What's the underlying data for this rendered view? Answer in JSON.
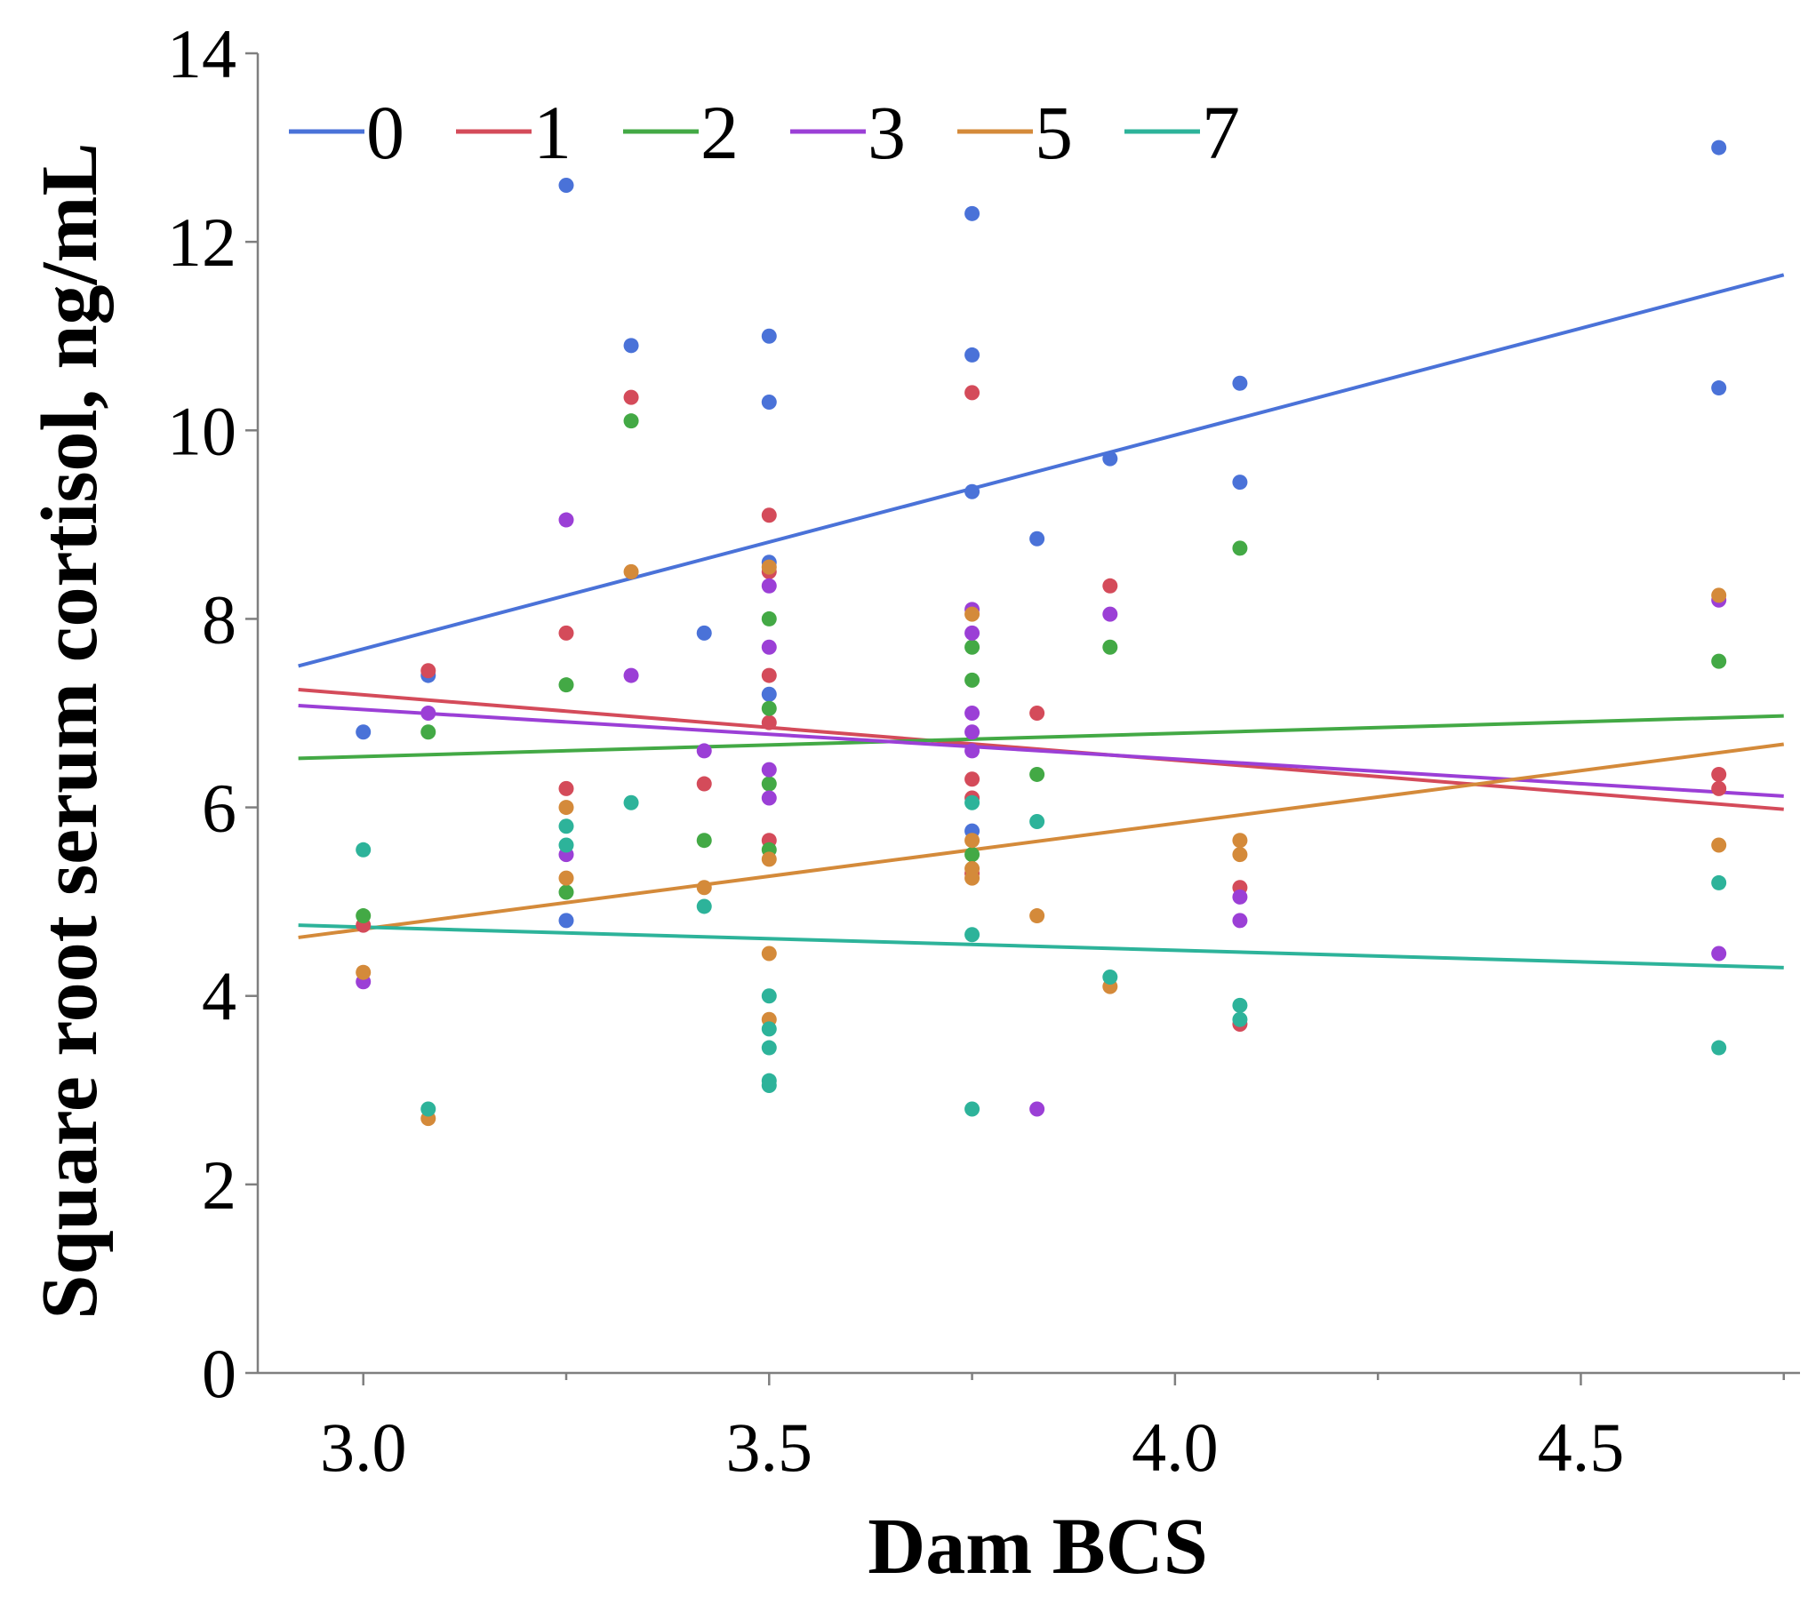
{
  "chart_data": {
    "type": "scatter",
    "title": "",
    "xlabel": "Dam BCS",
    "ylabel": "Square root serum cortisol, ng/mL",
    "xlim": [
      2.87,
      4.77
    ],
    "ylim": [
      0,
      14
    ],
    "xticks": [
      3.0,
      3.5,
      4.0,
      4.5
    ],
    "xtick_labels": [
      "3.0",
      "3.5",
      "4.0",
      "4.5"
    ],
    "xminor_ticks": [
      3.25,
      3.75,
      4.25,
      4.75
    ],
    "yticks": [
      0,
      2,
      4,
      6,
      8,
      10,
      12,
      14
    ],
    "ytick_labels": [
      "0",
      "2",
      "4",
      "6",
      "8",
      "10",
      "12",
      "14"
    ],
    "grid": false,
    "legend_position": "top",
    "series": [
      {
        "name": "0",
        "color": "#4a72d8",
        "fit": [
          [
            2.92,
            7.5
          ],
          [
            4.75,
            11.65
          ]
        ],
        "points": [
          [
            3.0,
            6.8
          ],
          [
            3.08,
            7.4
          ],
          [
            3.25,
            12.6
          ],
          [
            3.25,
            4.8
          ],
          [
            3.33,
            10.9
          ],
          [
            3.42,
            7.85
          ],
          [
            3.5,
            11.0
          ],
          [
            3.5,
            10.3
          ],
          [
            3.5,
            8.6
          ],
          [
            3.5,
            7.2
          ],
          [
            3.75,
            12.3
          ],
          [
            3.75,
            10.8
          ],
          [
            3.75,
            9.35
          ],
          [
            3.75,
            5.75
          ],
          [
            3.83,
            8.85
          ],
          [
            3.92,
            9.7
          ],
          [
            4.08,
            10.5
          ],
          [
            4.08,
            9.45
          ],
          [
            4.67,
            13.0
          ],
          [
            4.67,
            10.45
          ]
        ]
      },
      {
        "name": "1",
        "color": "#d44b5a",
        "fit": [
          [
            2.92,
            7.25
          ],
          [
            4.75,
            5.98
          ]
        ],
        "points": [
          [
            3.0,
            4.75
          ],
          [
            3.08,
            7.45
          ],
          [
            3.25,
            7.85
          ],
          [
            3.25,
            6.2
          ],
          [
            3.33,
            10.35
          ],
          [
            3.42,
            6.25
          ],
          [
            3.5,
            9.1
          ],
          [
            3.5,
            8.5
          ],
          [
            3.5,
            7.4
          ],
          [
            3.5,
            6.9
          ],
          [
            3.5,
            5.65
          ],
          [
            3.75,
            10.4
          ],
          [
            3.75,
            6.3
          ],
          [
            3.75,
            6.1
          ],
          [
            3.75,
            5.3
          ],
          [
            3.83,
            7.0
          ],
          [
            3.92,
            8.35
          ],
          [
            4.08,
            5.15
          ],
          [
            4.08,
            3.7
          ],
          [
            4.67,
            6.35
          ],
          [
            4.67,
            6.2
          ]
        ]
      },
      {
        "name": "2",
        "color": "#43a945",
        "fit": [
          [
            2.92,
            6.52
          ],
          [
            4.75,
            6.97
          ]
        ],
        "points": [
          [
            3.0,
            4.85
          ],
          [
            3.08,
            6.8
          ],
          [
            3.25,
            7.3
          ],
          [
            3.25,
            5.1
          ],
          [
            3.33,
            10.1
          ],
          [
            3.42,
            5.65
          ],
          [
            3.5,
            8.0
          ],
          [
            3.5,
            7.05
          ],
          [
            3.5,
            6.25
          ],
          [
            3.5,
            5.55
          ],
          [
            3.75,
            7.7
          ],
          [
            3.75,
            7.35
          ],
          [
            3.75,
            5.5
          ],
          [
            3.83,
            6.35
          ],
          [
            3.92,
            7.7
          ],
          [
            4.08,
            8.75
          ],
          [
            4.67,
            7.55
          ]
        ]
      },
      {
        "name": "3",
        "color": "#9b3fd6",
        "fit": [
          [
            2.92,
            7.08
          ],
          [
            4.75,
            6.12
          ]
        ],
        "points": [
          [
            3.0,
            4.15
          ],
          [
            3.08,
            7.0
          ],
          [
            3.25,
            9.05
          ],
          [
            3.25,
            5.5
          ],
          [
            3.33,
            7.4
          ],
          [
            3.42,
            6.6
          ],
          [
            3.5,
            8.35
          ],
          [
            3.5,
            7.7
          ],
          [
            3.5,
            6.4
          ],
          [
            3.5,
            6.1
          ],
          [
            3.75,
            8.1
          ],
          [
            3.75,
            7.85
          ],
          [
            3.75,
            7.0
          ],
          [
            3.75,
            6.8
          ],
          [
            3.75,
            6.6
          ],
          [
            3.83,
            2.8
          ],
          [
            3.92,
            8.05
          ],
          [
            4.08,
            5.05
          ],
          [
            4.08,
            4.8
          ],
          [
            4.67,
            8.2
          ],
          [
            4.67,
            4.45
          ]
        ]
      },
      {
        "name": "5",
        "color": "#d48a3a",
        "fit": [
          [
            2.92,
            4.62
          ],
          [
            4.75,
            6.67
          ]
        ],
        "points": [
          [
            3.0,
            4.25
          ],
          [
            3.08,
            2.7
          ],
          [
            3.25,
            6.0
          ],
          [
            3.25,
            5.25
          ],
          [
            3.33,
            8.5
          ],
          [
            3.42,
            5.15
          ],
          [
            3.5,
            8.55
          ],
          [
            3.5,
            5.45
          ],
          [
            3.5,
            4.45
          ],
          [
            3.5,
            3.75
          ],
          [
            3.75,
            8.05
          ],
          [
            3.75,
            5.65
          ],
          [
            3.75,
            5.35
          ],
          [
            3.75,
            5.25
          ],
          [
            3.83,
            4.85
          ],
          [
            3.92,
            4.1
          ],
          [
            4.08,
            5.65
          ],
          [
            4.08,
            5.5
          ],
          [
            4.67,
            8.25
          ],
          [
            4.67,
            5.6
          ]
        ]
      },
      {
        "name": "7",
        "color": "#2db39a",
        "fit": [
          [
            2.92,
            4.75
          ],
          [
            4.75,
            4.3
          ]
        ],
        "points": [
          [
            3.0,
            5.55
          ],
          [
            3.08,
            2.8
          ],
          [
            3.25,
            5.8
          ],
          [
            3.25,
            5.6
          ],
          [
            3.33,
            6.05
          ],
          [
            3.42,
            4.95
          ],
          [
            3.5,
            4.0
          ],
          [
            3.5,
            3.65
          ],
          [
            3.5,
            3.45
          ],
          [
            3.5,
            3.1
          ],
          [
            3.5,
            3.05
          ],
          [
            3.75,
            6.05
          ],
          [
            3.75,
            4.65
          ],
          [
            3.75,
            2.8
          ],
          [
            3.83,
            5.85
          ],
          [
            3.92,
            4.2
          ],
          [
            4.08,
            3.9
          ],
          [
            4.08,
            3.75
          ],
          [
            4.67,
            5.2
          ],
          [
            4.67,
            3.45
          ]
        ]
      }
    ]
  }
}
